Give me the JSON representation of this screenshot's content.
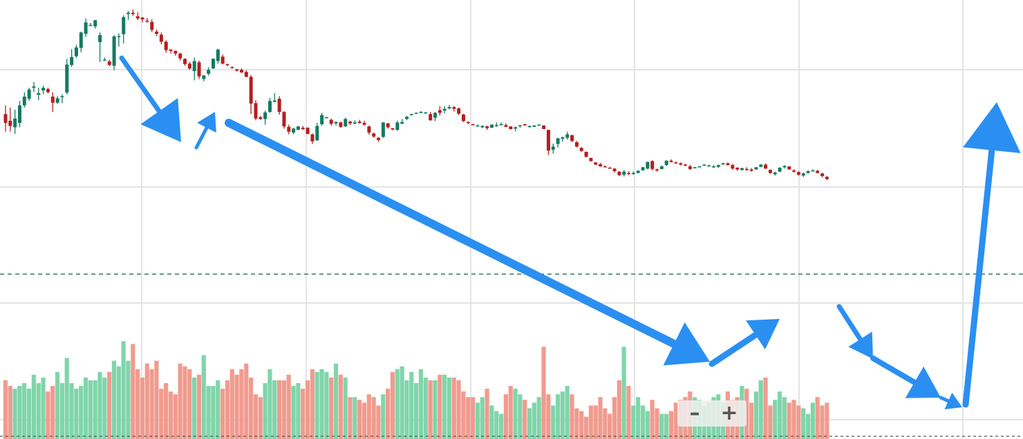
{
  "chart_data": {
    "type": "candlestick",
    "grid": true,
    "ylim": [
      0,
      100
    ],
    "volume_ylim": [
      0,
      100
    ],
    "colors": {
      "up": "#137b5f",
      "down": "#b41f1f",
      "volume_up": "#80d5aa",
      "volume_down": "#f09b8f",
      "arrow": "#2b8ff2",
      "grid": "#e3e3e3"
    },
    "volume_reference_level": 58,
    "candles": [
      [
        74.0,
        76.0,
        70.0,
        72.0,
        20
      ],
      [
        72.5,
        75.5,
        70.0,
        71.3,
        18
      ],
      [
        71.0,
        75.0,
        69.5,
        73.0,
        17
      ],
      [
        72.0,
        77.0,
        71.0,
        76.0,
        18
      ],
      [
        76.0,
        79.0,
        75.5,
        78.0,
        19
      ],
      [
        77.5,
        80.0,
        77.0,
        79.6,
        17
      ],
      [
        80.0,
        81.3,
        79.0,
        80.3,
        22
      ],
      [
        78.4,
        80.0,
        77.2,
        78.8,
        19
      ],
      [
        79.4,
        80.5,
        78.5,
        80.0,
        21
      ],
      [
        79.7,
        80.0,
        78.7,
        79.0,
        16
      ],
      [
        78.0,
        79.0,
        74.5,
        76.6,
        18
      ],
      [
        76.6,
        78.1,
        76.3,
        77.6,
        23
      ],
      [
        78.0,
        78.5,
        76.5,
        78.1,
        19
      ],
      [
        78.9,
        86.6,
        78.5,
        85.3,
        28
      ],
      [
        85.2,
        88.8,
        84.8,
        87.0,
        19
      ],
      [
        87.2,
        89.8,
        86.8,
        89.2,
        17
      ],
      [
        89.1,
        92.8,
        88.1,
        92.6,
        18
      ],
      [
        92.3,
        95.8,
        91.6,
        94.9,
        21
      ],
      [
        94.2,
        94.8,
        94.1,
        94.3,
        20
      ],
      [
        94.0,
        95.4,
        93.5,
        95.4,
        20
      ],
      [
        90.4,
        92.6,
        85.9,
        92.0,
        23
      ],
      [
        86.4,
        86.9,
        86.3,
        86.4,
        21
      ],
      [
        86.0,
        86.4,
        84.9,
        85.2,
        23
      ],
      [
        85.0,
        92.0,
        84.0,
        91.7,
        27
      ],
      [
        91.8,
        92.4,
        89.4,
        91.8,
        25
      ],
      [
        92.2,
        96.5,
        90.1,
        96.1,
        34
      ],
      [
        96.8,
        97.5,
        95.5,
        97.1,
        27
      ],
      [
        97.1,
        97.8,
        96.4,
        96.8,
        33
      ],
      [
        96.3,
        97.2,
        95.4,
        95.8,
        24
      ],
      [
        96.0,
        96.1,
        94.9,
        95.6,
        21
      ],
      [
        95.3,
        95.9,
        94.8,
        95.1,
        26
      ],
      [
        95.0,
        95.6,
        92.7,
        93.2,
        24
      ],
      [
        92.8,
        93.3,
        91.8,
        92.3,
        27
      ],
      [
        92.1,
        92.6,
        89.9,
        90.5,
        17
      ],
      [
        90.5,
        90.8,
        88.0,
        88.6,
        19
      ],
      [
        88.7,
        88.8,
        87.8,
        88.4,
        16
      ],
      [
        88.4,
        88.5,
        87.3,
        87.8,
        15
      ],
      [
        87.8,
        88.0,
        86.2,
        86.7,
        26
      ],
      [
        86.6,
        86.7,
        85.0,
        85.4,
        25
      ],
      [
        85.5,
        85.9,
        84.1,
        84.4,
        24
      ],
      [
        83.8,
        86.9,
        81.7,
        86.1,
        21
      ],
      [
        85.8,
        86.2,
        82.0,
        82.6,
        22
      ],
      [
        82.0,
        82.9,
        81.5,
        82.8,
        29
      ],
      [
        83.2,
        84.7,
        82.8,
        84.1,
        18
      ],
      [
        84.4,
        86.7,
        84.3,
        86.6,
        18
      ],
      [
        86.1,
        88.9,
        85.5,
        88.7,
        20
      ],
      [
        87.1,
        87.6,
        85.3,
        85.5,
        17
      ],
      [
        85.4,
        85.5,
        84.9,
        85.3,
        20
      ],
      [
        84.7,
        84.9,
        84.4,
        84.6,
        24
      ],
      [
        84.2,
        84.3,
        83.7,
        83.9,
        22
      ],
      [
        84.1,
        84.4,
        83.4,
        83.5,
        24
      ],
      [
        83.6,
        84.0,
        82.4,
        82.5,
        26
      ],
      [
        82.5,
        82.9,
        74.0,
        76.4,
        21
      ],
      [
        76.5,
        77.2,
        72.6,
        73.0,
        15
      ],
      [
        73.3,
        73.6,
        72.7,
        72.9,
        14
      ],
      [
        72.9,
        74.8,
        71.6,
        74.4,
        19
      ],
      [
        74.5,
        77.7,
        74.3,
        77.0,
        24
      ],
      [
        76.8,
        78.8,
        76.7,
        77.1,
        20
      ],
      [
        77.5,
        78.1,
        73.9,
        74.5,
        20
      ],
      [
        74.5,
        74.7,
        70.7,
        71.2,
        20
      ],
      [
        71.1,
        71.6,
        69.4,
        70.0,
        22
      ],
      [
        69.8,
        70.9,
        69.4,
        70.7,
        18
      ],
      [
        70.4,
        71.3,
        70.4,
        71.2,
        19
      ],
      [
        70.9,
        71.3,
        70.4,
        70.6,
        17
      ],
      [
        70.9,
        71.0,
        69.4,
        69.5,
        20
      ],
      [
        69.4,
        69.6,
        67.2,
        67.8,
        24
      ],
      [
        68.0,
        72.0,
        68.0,
        71.3,
        23
      ],
      [
        71.7,
        74.3,
        71.4,
        73.8,
        24
      ],
      [
        73.3,
        73.4,
        73.1,
        73.3,
        23
      ],
      [
        72.7,
        73.0,
        71.4,
        71.8,
        21
      ],
      [
        71.9,
        72.4,
        71.4,
        72.2,
        26
      ],
      [
        72.1,
        72.3,
        70.9,
        71.1,
        22
      ],
      [
        71.2,
        73.2,
        71.1,
        72.9,
        21
      ],
      [
        72.3,
        72.5,
        71.5,
        71.9,
        14
      ],
      [
        71.9,
        72.6,
        71.7,
        72.1,
        14
      ],
      [
        72.3,
        72.7,
        71.8,
        72.0,
        13
      ],
      [
        72.0,
        72.5,
        71.4,
        71.6,
        12
      ],
      [
        71.2,
        71.4,
        69.3,
        69.8,
        15
      ],
      [
        69.6,
        69.8,
        68.6,
        68.9,
        14
      ],
      [
        68.6,
        68.8,
        67.7,
        68.1,
        11
      ],
      [
        68.8,
        72.2,
        68.6,
        72.1,
        15
      ],
      [
        71.9,
        72.0,
        70.7,
        71.0,
        17
      ],
      [
        70.8,
        70.8,
        70.3,
        70.5,
        23
      ],
      [
        70.4,
        72.5,
        70.2,
        72.1,
        24
      ],
      [
        71.8,
        72.9,
        71.8,
        72.2,
        25
      ],
      [
        72.9,
        73.6,
        72.6,
        73.4,
        20
      ],
      [
        73.8,
        74.1,
        73.7,
        74.0,
        23
      ],
      [
        74.3,
        74.4,
        74.2,
        74.3,
        19
      ],
      [
        74.5,
        74.7,
        74.2,
        74.5,
        24
      ],
      [
        74.4,
        74.5,
        74.1,
        74.4,
        21
      ],
      [
        74.0,
        74.5,
        72.5,
        72.6,
        20
      ],
      [
        73.2,
        74.5,
        72.4,
        74.3,
        20
      ],
      [
        74.9,
        75.8,
        73.7,
        74.3,
        22
      ],
      [
        74.8,
        75.8,
        74.2,
        75.2,
        22
      ],
      [
        75.3,
        76.1,
        75.1,
        75.6,
        21
      ],
      [
        75.6,
        75.8,
        74.6,
        75.2,
        21
      ],
      [
        75.3,
        75.5,
        73.8,
        74.1,
        20
      ],
      [
        73.9,
        74.1,
        72.2,
        72.4,
        16
      ],
      [
        72.2,
        72.4,
        71.7,
        72.0,
        14
      ],
      [
        71.7,
        71.8,
        71.5,
        71.6,
        14
      ],
      [
        71.4,
        71.7,
        71.3,
        71.4,
        12
      ],
      [
        71.0,
        71.5,
        70.8,
        71.3,
        14
      ],
      [
        71.2,
        71.4,
        70.4,
        70.8,
        17
      ],
      [
        70.9,
        71.7,
        70.9,
        71.6,
        11
      ],
      [
        71.3,
        72.1,
        71.1,
        71.5,
        9
      ],
      [
        71.6,
        72.1,
        71.5,
        71.7,
        8
      ],
      [
        71.5,
        71.9,
        71.1,
        71.1,
        15
      ],
      [
        71.2,
        71.2,
        70.5,
        70.6,
        18
      ],
      [
        70.7,
        71.2,
        70.1,
        71.0,
        17
      ],
      [
        71.3,
        71.5,
        70.9,
        71.5,
        15
      ],
      [
        71.7,
        71.8,
        71.3,
        71.5,
        13
      ],
      [
        71.2,
        71.4,
        70.9,
        71.3,
        10
      ],
      [
        71.1,
        71.5,
        71.1,
        71.4,
        12
      ],
      [
        71.5,
        71.7,
        71.4,
        71.6,
        14
      ],
      [
        71.4,
        71.5,
        70.6,
        70.6,
        32
      ],
      [
        70.4,
        70.5,
        64.7,
        65.7,
        15
      ],
      [
        65.9,
        67.3,
        65.0,
        66.6,
        11
      ],
      [
        67.2,
        68.6,
        66.4,
        68.5,
        15
      ],
      [
        68.4,
        68.9,
        67.7,
        68.7,
        16
      ],
      [
        68.6,
        70.0,
        68.2,
        69.4,
        18
      ],
      [
        69.2,
        69.3,
        67.6,
        67.9,
        15
      ],
      [
        67.6,
        67.9,
        66.4,
        66.6,
        10
      ],
      [
        66.3,
        66.5,
        65.4,
        65.6,
        9
      ],
      [
        65.4,
        65.5,
        64.1,
        64.3,
        7
      ],
      [
        64.0,
        64.1,
        63.2,
        63.3,
        11
      ],
      [
        63.0,
        63.1,
        62.4,
        62.5,
        11
      ],
      [
        62.6,
        62.9,
        62.0,
        62.1,
        14
      ],
      [
        62.1,
        62.3,
        61.9,
        62.0,
        10
      ],
      [
        61.8,
        62.0,
        61.6,
        61.7,
        8
      ],
      [
        61.6,
        61.7,
        60.7,
        61.0,
        14
      ],
      [
        60.9,
        61.0,
        59.9,
        60.1,
        20
      ],
      [
        60.2,
        61.2,
        59.8,
        60.9,
        32
      ],
      [
        60.6,
        61.0,
        60.1,
        60.4,
        18
      ],
      [
        60.4,
        60.9,
        60.2,
        60.6,
        11
      ],
      [
        60.6,
        61.2,
        60.5,
        61.1,
        14
      ],
      [
        61.2,
        62.0,
        61.1,
        61.9,
        11
      ],
      [
        61.6,
        63.2,
        61.4,
        63.1,
        9
      ],
      [
        63.3,
        63.5,
        61.2,
        61.5,
        13
      ],
      [
        61.4,
        61.6,
        60.9,
        61.2,
        10
      ],
      [
        61.5,
        62.3,
        61.4,
        62.1,
        8
      ],
      [
        62.4,
        63.5,
        62.2,
        63.4,
        8
      ],
      [
        63.4,
        63.7,
        63.0,
        63.1,
        9
      ],
      [
        63.0,
        63.2,
        62.7,
        62.8,
        12
      ],
      [
        62.8,
        63.0,
        62.3,
        62.5,
        13
      ],
      [
        62.5,
        62.7,
        62.1,
        62.4,
        14
      ],
      [
        62.1,
        62.4,
        61.3,
        61.5,
        16
      ],
      [
        61.7,
        62.0,
        61.7,
        61.9,
        14
      ],
      [
        61.9,
        62.2,
        61.9,
        62.1,
        13
      ],
      [
        62.4,
        62.6,
        62.2,
        62.5,
        11
      ],
      [
        62.2,
        62.5,
        62.1,
        62.3,
        12
      ],
      [
        62.0,
        62.4,
        61.8,
        62.1,
        14
      ],
      [
        62.0,
        62.5,
        61.7,
        62.4,
        15
      ],
      [
        62.6,
        62.9,
        62.4,
        62.8,
        12
      ],
      [
        62.8,
        63.0,
        62.3,
        62.4,
        16
      ],
      [
        62.4,
        62.7,
        61.3,
        61.6,
        13
      ],
      [
        61.8,
        61.9,
        61.1,
        61.4,
        14
      ],
      [
        61.3,
        61.8,
        61.1,
        61.7,
        18
      ],
      [
        61.5,
        61.9,
        61.1,
        61.3,
        17
      ],
      [
        61.4,
        61.7,
        60.9,
        61.1,
        12
      ],
      [
        61.4,
        62.0,
        61.3,
        61.9,
        16
      ],
      [
        62.0,
        62.6,
        61.9,
        62.5,
        20
      ],
      [
        62.5,
        62.8,
        61.5,
        61.6,
        21
      ],
      [
        61.3,
        61.4,
        60.4,
        60.6,
        11
      ],
      [
        60.3,
        60.9,
        60.0,
        60.7,
        13
      ],
      [
        60.9,
        61.9,
        60.8,
        61.8,
        16
      ],
      [
        61.9,
        62.4,
        61.6,
        62.2,
        14
      ],
      [
        62.1,
        62.1,
        61.3,
        61.4,
        12
      ],
      [
        61.2,
        61.4,
        60.7,
        60.9,
        13
      ],
      [
        60.8,
        61.0,
        60.0,
        60.2,
        11
      ],
      [
        60.0,
        60.7,
        59.7,
        60.5,
        10
      ],
      [
        60.6,
        61.2,
        60.4,
        61.0,
        8
      ],
      [
        61.1,
        61.4,
        60.9,
        61.2,
        12
      ],
      [
        61.1,
        61.3,
        60.5,
        60.6,
        14
      ],
      [
        60.5,
        60.6,
        59.6,
        59.9,
        11
      ],
      [
        59.7,
        59.9,
        59.0,
        59.2,
        12
      ]
    ]
  }
}
